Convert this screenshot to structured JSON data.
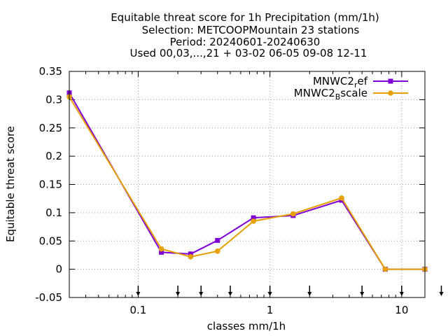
{
  "chart_data": {
    "type": "line",
    "title_lines": [
      "Equitable threat score  for 1h Precipitation (mm/1h)",
      "Selection: METCOOPMountain     23 stations",
      "Period: 20240601-20240630",
      "Used 00,03,...,21 + 03-02 06-05 09-08 12-11"
    ],
    "xlabel": "classes mm/1h",
    "ylabel": "Equitable threat score",
    "xscale": "log",
    "xlim": [
      0.03,
      15
    ],
    "ylim": [
      -0.05,
      0.35
    ],
    "x_ticks": [
      0.1,
      1,
      10
    ],
    "x_tick_labels": [
      "0.1",
      "1",
      "10"
    ],
    "y_ticks": [
      -0.05,
      0,
      0.05,
      0.1,
      0.15,
      0.2,
      0.25,
      0.3,
      0.35
    ],
    "y_tick_labels": [
      "-0.05",
      "0",
      "0.05",
      "0.1",
      "0.15",
      "0.2",
      "0.25",
      "0.3",
      "0.35"
    ],
    "grid": true,
    "legend_position": "top-right",
    "class_markers": [
      0.1,
      0.2,
      0.3,
      0.5,
      1,
      2,
      5,
      10,
      20
    ],
    "series": [
      {
        "name_main": "MNWC2",
        "name_sub": "r",
        "name_rest": "ef",
        "color": "#7f00d4",
        "marker": "filled-square",
        "x": [
          0.03,
          0.15,
          0.25,
          0.4,
          0.75,
          1.5,
          3.5,
          7.5,
          15
        ],
        "y": [
          0.312,
          0.03,
          0.027,
          0.051,
          0.091,
          0.095,
          0.122,
          0.0,
          0.0
        ]
      },
      {
        "name_main": "MNWC2",
        "name_sub": "B",
        "name_rest": "scale",
        "color": "#e6a100",
        "marker": "filled-circle",
        "x": [
          0.03,
          0.15,
          0.25,
          0.4,
          0.75,
          1.5,
          3.5,
          7.5,
          15
        ],
        "y": [
          0.305,
          0.036,
          0.022,
          0.032,
          0.085,
          0.098,
          0.126,
          0.0,
          0.0
        ]
      }
    ]
  }
}
